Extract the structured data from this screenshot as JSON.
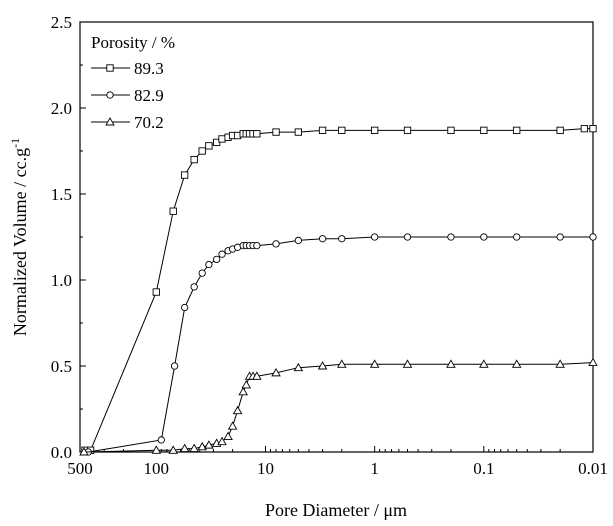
{
  "chart_data": {
    "type": "line",
    "title": "",
    "xlabel": "Pore Diameter / μm",
    "ylabel_main": "Normalized Volume / cc.g",
    "ylabel_sup": "-1",
    "x_scale": "log",
    "x_reversed": true,
    "xlim": [
      500,
      0.01
    ],
    "ylim": [
      0,
      2.5
    ],
    "x_ticks": [
      {
        "value": 500,
        "label": "500"
      },
      {
        "value": 100,
        "label": "100"
      },
      {
        "value": 10,
        "label": "10"
      },
      {
        "value": 1,
        "label": "1"
      },
      {
        "value": 0.1,
        "label": "0.1"
      },
      {
        "value": 0.01,
        "label": "0.01"
      }
    ],
    "y_ticks": [
      {
        "value": 0.0,
        "label": "0.0"
      },
      {
        "value": 0.5,
        "label": "0.5"
      },
      {
        "value": 1.0,
        "label": "1.0"
      },
      {
        "value": 1.5,
        "label": "1.5"
      },
      {
        "value": 2.0,
        "label": "2.0"
      },
      {
        "value": 2.5,
        "label": "2.5"
      }
    ],
    "legend": {
      "title": "Porosity / %",
      "position": "top-left"
    },
    "series": [
      {
        "name": "89.3",
        "marker": "square",
        "x": [
          450,
          400,
          100,
          70,
          55,
          45,
          38,
          33,
          28,
          25,
          22,
          20,
          18,
          16,
          15,
          14,
          13,
          12,
          8,
          5,
          3,
          2,
          1,
          0.5,
          0.2,
          0.1,
          0.05,
          0.02,
          0.012,
          0.01
        ],
        "y": [
          0.01,
          0.01,
          0.93,
          1.4,
          1.61,
          1.7,
          1.75,
          1.78,
          1.8,
          1.82,
          1.83,
          1.84,
          1.84,
          1.85,
          1.85,
          1.85,
          1.85,
          1.85,
          1.86,
          1.86,
          1.87,
          1.87,
          1.87,
          1.87,
          1.87,
          1.87,
          1.87,
          1.87,
          1.88,
          1.88
        ]
      },
      {
        "name": "82.9",
        "marker": "circle",
        "x": [
          420,
          90,
          68,
          55,
          45,
          38,
          33,
          28,
          25,
          22,
          20,
          18,
          16,
          15,
          14,
          13,
          12,
          8,
          5,
          3,
          2,
          1,
          0.5,
          0.2,
          0.1,
          0.05,
          0.02,
          0.01
        ],
        "y": [
          0.0,
          0.07,
          0.5,
          0.84,
          0.96,
          1.04,
          1.09,
          1.12,
          1.15,
          1.17,
          1.18,
          1.19,
          1.2,
          1.2,
          1.2,
          1.2,
          1.2,
          1.21,
          1.23,
          1.24,
          1.24,
          1.25,
          1.25,
          1.25,
          1.25,
          1.25,
          1.25,
          1.25
        ]
      },
      {
        "name": "70.2",
        "marker": "triangle",
        "x": [
          460,
          100,
          70,
          55,
          45,
          38,
          33,
          28,
          25,
          22,
          20,
          18,
          16,
          15,
          14,
          13,
          12,
          8,
          5,
          3,
          2,
          1,
          0.5,
          0.2,
          0.1,
          0.05,
          0.02,
          0.01
        ],
        "y": [
          0.0,
          0.01,
          0.01,
          0.02,
          0.02,
          0.03,
          0.04,
          0.05,
          0.06,
          0.09,
          0.15,
          0.24,
          0.35,
          0.39,
          0.44,
          0.44,
          0.44,
          0.46,
          0.49,
          0.5,
          0.51,
          0.51,
          0.51,
          0.51,
          0.51,
          0.51,
          0.51,
          0.52
        ]
      }
    ]
  }
}
